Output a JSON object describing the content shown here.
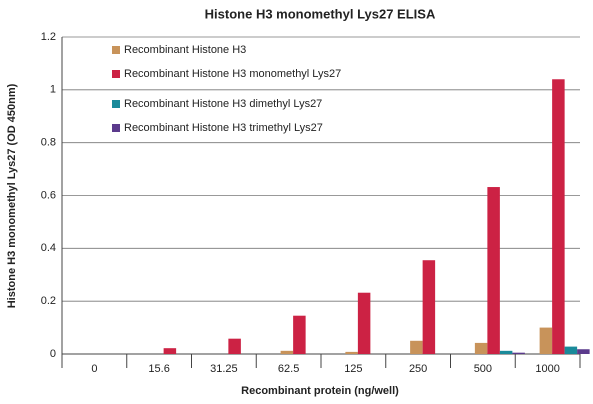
{
  "chart_data": {
    "type": "bar",
    "title": "Histone H3 monomethyl Lys27 ELISA",
    "x_label": "Recombinant protein (ng/well)",
    "y_label": "Histone H3 monomethyl Lys27 (OD 450nm)",
    "categories": [
      "0",
      "15.6",
      "31.25",
      "62.5",
      "125",
      "250",
      "500",
      "1000"
    ],
    "series": [
      {
        "name": "Recombinant Histone H3",
        "color": "#c8935a",
        "values": [
          0,
          0,
          0,
          0.012,
          0.008,
          0.05,
          0.042,
          0.1
        ]
      },
      {
        "name": "Recombinant Histone H3 monomethyl Lys27",
        "color": "#cc2244",
        "values": [
          0,
          0.022,
          0.058,
          0.145,
          0.232,
          0.355,
          0.632,
          1.04
        ]
      },
      {
        "name": "Recombinant Histone H3 dimethyl Lys27",
        "color": "#1a8a9a",
        "values": [
          0,
          0,
          0,
          0,
          0,
          0,
          0.012,
          0.028
        ]
      },
      {
        "name": "Recombinant Histone H3 trimethyl Lys27",
        "color": "#5b3a8c",
        "values": [
          0,
          0,
          0,
          0,
          0,
          0,
          0.005,
          0.018
        ]
      }
    ],
    "ylim": [
      0,
      1.2
    ],
    "yticks": [
      0,
      0.2,
      0.4,
      0.6,
      0.8,
      1,
      1.2
    ],
    "grid": true,
    "legend": "upper left"
  }
}
